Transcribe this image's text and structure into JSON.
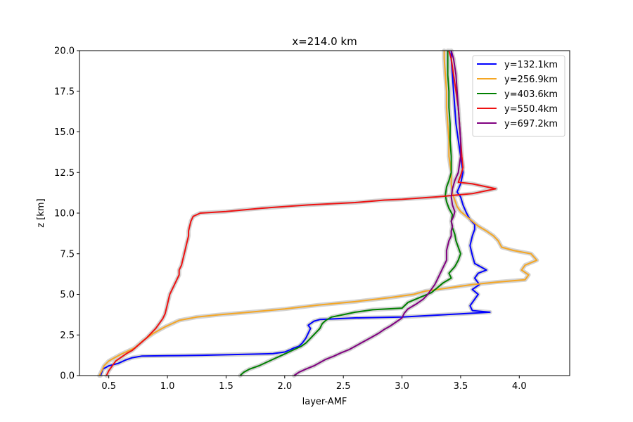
{
  "chart_data": {
    "type": "line",
    "title": "x=214.0 km",
    "xlabel": "layer-AMF",
    "ylabel": "z [km]",
    "xlim": [
      0.25,
      4.43
    ],
    "ylim": [
      0,
      20
    ],
    "xticks": [
      0.5,
      1.0,
      1.5,
      2.0,
      2.5,
      3.0,
      3.5,
      4.0
    ],
    "yticks": [
      0.0,
      2.5,
      5.0,
      7.5,
      10.0,
      12.5,
      15.0,
      17.5,
      20.0
    ],
    "xtick_labels": [
      "0.5",
      "1.0",
      "1.5",
      "2.0",
      "2.5",
      "3.0",
      "3.5",
      "4.0"
    ],
    "ytick_labels": [
      "0.0",
      "2.5",
      "5.0",
      "7.5",
      "10.0",
      "12.5",
      "15.0",
      "17.5",
      "20.0"
    ],
    "grid": false,
    "legend_position": "top-right",
    "series": [
      {
        "name": "y=132.1km",
        "color": "#0000ff",
        "points": [
          [
            0.43,
            0.0
          ],
          [
            0.45,
            0.4
          ],
          [
            0.5,
            0.6
          ],
          [
            0.58,
            0.75
          ],
          [
            0.64,
            0.95
          ],
          [
            0.7,
            1.1
          ],
          [
            0.78,
            1.2
          ],
          [
            1.0,
            1.22
          ],
          [
            1.3,
            1.25
          ],
          [
            1.6,
            1.3
          ],
          [
            1.9,
            1.35
          ],
          [
            2.0,
            1.45
          ],
          [
            2.05,
            1.6
          ],
          [
            2.08,
            1.7
          ],
          [
            2.12,
            1.8
          ],
          [
            2.15,
            2.0
          ],
          [
            2.18,
            2.3
          ],
          [
            2.2,
            2.6
          ],
          [
            2.22,
            2.9
          ],
          [
            2.2,
            3.1
          ],
          [
            2.25,
            3.35
          ],
          [
            2.3,
            3.45
          ],
          [
            2.6,
            3.55
          ],
          [
            3.0,
            3.6
          ],
          [
            3.5,
            3.8
          ],
          [
            3.75,
            3.9
          ],
          [
            3.6,
            4.0
          ],
          [
            3.58,
            4.3
          ],
          [
            3.62,
            4.7
          ],
          [
            3.65,
            5.0
          ],
          [
            3.6,
            5.3
          ],
          [
            3.66,
            5.6
          ],
          [
            3.62,
            6.0
          ],
          [
            3.65,
            6.3
          ],
          [
            3.72,
            6.5
          ],
          [
            3.62,
            6.9
          ],
          [
            3.6,
            7.4
          ],
          [
            3.58,
            8.0
          ],
          [
            3.6,
            8.6
          ],
          [
            3.62,
            9.0
          ],
          [
            3.62,
            9.3
          ],
          [
            3.58,
            9.6
          ],
          [
            3.55,
            10.0
          ],
          [
            3.52,
            10.5
          ],
          [
            3.5,
            11.0
          ],
          [
            3.47,
            11.3
          ],
          [
            3.5,
            11.8
          ],
          [
            3.52,
            12.5
          ],
          [
            3.5,
            13.5
          ],
          [
            3.48,
            14.5
          ],
          [
            3.46,
            15.5
          ],
          [
            3.45,
            16.5
          ],
          [
            3.44,
            17.5
          ],
          [
            3.43,
            18.5
          ],
          [
            3.42,
            19.5
          ],
          [
            3.42,
            20.0
          ]
        ]
      },
      {
        "name": "y=256.9km",
        "color": "#f5a623",
        "points": [
          [
            0.42,
            0.0
          ],
          [
            0.44,
            0.3
          ],
          [
            0.46,
            0.6
          ],
          [
            0.5,
            0.9
          ],
          [
            0.55,
            1.1
          ],
          [
            0.6,
            1.3
          ],
          [
            0.66,
            1.5
          ],
          [
            0.72,
            1.7
          ],
          [
            0.76,
            1.95
          ],
          [
            0.8,
            2.2
          ],
          [
            0.84,
            2.4
          ],
          [
            0.88,
            2.6
          ],
          [
            0.93,
            2.8
          ],
          [
            0.98,
            3.0
          ],
          [
            1.04,
            3.2
          ],
          [
            1.1,
            3.4
          ],
          [
            1.25,
            3.6
          ],
          [
            1.45,
            3.75
          ],
          [
            1.7,
            3.9
          ],
          [
            2.0,
            4.1
          ],
          [
            2.3,
            4.35
          ],
          [
            2.6,
            4.55
          ],
          [
            2.9,
            4.8
          ],
          [
            3.1,
            5.0
          ],
          [
            3.2,
            5.2
          ],
          [
            3.4,
            5.4
          ],
          [
            3.6,
            5.6
          ],
          [
            3.8,
            5.75
          ],
          [
            4.05,
            5.9
          ],
          [
            4.08,
            6.2
          ],
          [
            4.02,
            6.5
          ],
          [
            4.05,
            6.8
          ],
          [
            4.15,
            7.1
          ],
          [
            4.1,
            7.5
          ],
          [
            3.95,
            7.7
          ],
          [
            3.85,
            7.9
          ],
          [
            3.82,
            8.3
          ],
          [
            3.78,
            8.6
          ],
          [
            3.72,
            8.9
          ],
          [
            3.65,
            9.2
          ],
          [
            3.6,
            9.5
          ],
          [
            3.55,
            9.8
          ],
          [
            3.5,
            10.1
          ],
          [
            3.47,
            10.4
          ],
          [
            3.45,
            10.8
          ],
          [
            3.43,
            11.2
          ],
          [
            3.42,
            11.8
          ],
          [
            3.42,
            12.5
          ],
          [
            3.4,
            13.5
          ],
          [
            3.4,
            14.5
          ],
          [
            3.39,
            15.5
          ],
          [
            3.38,
            16.5
          ],
          [
            3.38,
            17.5
          ],
          [
            3.37,
            18.5
          ],
          [
            3.36,
            19.5
          ],
          [
            3.36,
            20.0
          ]
        ]
      },
      {
        "name": "y=403.6km",
        "color": "#008000",
        "points": [
          [
            1.62,
            0.0
          ],
          [
            1.65,
            0.2
          ],
          [
            1.7,
            0.4
          ],
          [
            1.78,
            0.6
          ],
          [
            1.84,
            0.8
          ],
          [
            1.9,
            1.0
          ],
          [
            1.96,
            1.2
          ],
          [
            2.02,
            1.4
          ],
          [
            2.08,
            1.6
          ],
          [
            2.14,
            1.8
          ],
          [
            2.18,
            2.0
          ],
          [
            2.22,
            2.3
          ],
          [
            2.26,
            2.6
          ],
          [
            2.3,
            2.9
          ],
          [
            2.32,
            3.2
          ],
          [
            2.35,
            3.4
          ],
          [
            2.4,
            3.6
          ],
          [
            2.5,
            3.75
          ],
          [
            2.6,
            3.9
          ],
          [
            2.75,
            4.05
          ],
          [
            3.0,
            4.15
          ],
          [
            3.05,
            4.5
          ],
          [
            3.15,
            4.8
          ],
          [
            3.25,
            5.1
          ],
          [
            3.3,
            5.4
          ],
          [
            3.35,
            5.7
          ],
          [
            3.42,
            6.0
          ],
          [
            3.4,
            6.3
          ],
          [
            3.45,
            6.7
          ],
          [
            3.48,
            7.1
          ],
          [
            3.5,
            7.5
          ],
          [
            3.48,
            7.9
          ],
          [
            3.46,
            8.3
          ],
          [
            3.45,
            8.7
          ],
          [
            3.43,
            9.1
          ],
          [
            3.42,
            9.5
          ],
          [
            3.43,
            9.9
          ],
          [
            3.4,
            10.3
          ],
          [
            3.38,
            10.7
          ],
          [
            3.37,
            11.1
          ],
          [
            3.38,
            11.6
          ],
          [
            3.4,
            12.0
          ],
          [
            3.42,
            12.5
          ],
          [
            3.42,
            13.5
          ],
          [
            3.41,
            14.5
          ],
          [
            3.41,
            15.5
          ],
          [
            3.4,
            16.5
          ],
          [
            3.4,
            17.5
          ],
          [
            3.39,
            18.5
          ],
          [
            3.39,
            19.5
          ],
          [
            3.39,
            20.0
          ]
        ]
      },
      {
        "name": "y=550.4km",
        "color": "#ee1111",
        "points": [
          [
            0.48,
            0.0
          ],
          [
            0.5,
            0.3
          ],
          [
            0.53,
            0.6
          ],
          [
            0.56,
            0.9
          ],
          [
            0.6,
            1.1
          ],
          [
            0.65,
            1.35
          ],
          [
            0.7,
            1.55
          ],
          [
            0.74,
            1.8
          ],
          [
            0.78,
            2.05
          ],
          [
            0.82,
            2.3
          ],
          [
            0.86,
            2.6
          ],
          [
            0.9,
            2.9
          ],
          [
            0.93,
            3.2
          ],
          [
            0.96,
            3.5
          ],
          [
            0.98,
            3.8
          ],
          [
            0.99,
            4.1
          ],
          [
            1.0,
            4.4
          ],
          [
            1.01,
            4.7
          ],
          [
            1.02,
            5.0
          ],
          [
            1.04,
            5.3
          ],
          [
            1.06,
            5.6
          ],
          [
            1.08,
            5.9
          ],
          [
            1.1,
            6.2
          ],
          [
            1.1,
            6.5
          ],
          [
            1.12,
            6.8
          ],
          [
            1.13,
            7.1
          ],
          [
            1.14,
            7.4
          ],
          [
            1.15,
            7.7
          ],
          [
            1.16,
            8.0
          ],
          [
            1.17,
            8.3
          ],
          [
            1.18,
            8.6
          ],
          [
            1.18,
            8.9
          ],
          [
            1.19,
            9.2
          ],
          [
            1.2,
            9.5
          ],
          [
            1.22,
            9.8
          ],
          [
            1.28,
            10.0
          ],
          [
            1.5,
            10.1
          ],
          [
            1.8,
            10.3
          ],
          [
            2.2,
            10.5
          ],
          [
            2.6,
            10.65
          ],
          [
            2.85,
            10.8
          ],
          [
            3.0,
            10.85
          ],
          [
            3.3,
            11.0
          ],
          [
            3.6,
            11.2
          ],
          [
            3.8,
            11.5
          ],
          [
            3.6,
            11.8
          ],
          [
            3.48,
            11.9
          ],
          [
            3.5,
            12.3
          ],
          [
            3.52,
            12.8
          ],
          [
            3.51,
            13.5
          ],
          [
            3.5,
            14.5
          ],
          [
            3.49,
            15.5
          ],
          [
            3.48,
            16.5
          ],
          [
            3.46,
            17.5
          ],
          [
            3.44,
            18.5
          ],
          [
            3.42,
            19.5
          ],
          [
            3.4,
            20.0
          ]
        ]
      },
      {
        "name": "y=697.2km",
        "color": "#800080",
        "points": [
          [
            2.08,
            0.0
          ],
          [
            2.12,
            0.2
          ],
          [
            2.18,
            0.4
          ],
          [
            2.25,
            0.6
          ],
          [
            2.3,
            0.8
          ],
          [
            2.35,
            1.0
          ],
          [
            2.42,
            1.2
          ],
          [
            2.48,
            1.4
          ],
          [
            2.55,
            1.6
          ],
          [
            2.6,
            1.8
          ],
          [
            2.65,
            2.0
          ],
          [
            2.7,
            2.2
          ],
          [
            2.75,
            2.4
          ],
          [
            2.8,
            2.6
          ],
          [
            2.85,
            2.85
          ],
          [
            2.9,
            3.05
          ],
          [
            2.95,
            3.3
          ],
          [
            3.0,
            3.55
          ],
          [
            3.02,
            3.85
          ],
          [
            3.05,
            4.1
          ],
          [
            3.12,
            4.4
          ],
          [
            3.18,
            4.7
          ],
          [
            3.22,
            5.0
          ],
          [
            3.25,
            5.3
          ],
          [
            3.28,
            5.6
          ],
          [
            3.3,
            5.9
          ],
          [
            3.32,
            6.2
          ],
          [
            3.34,
            6.5
          ],
          [
            3.36,
            6.8
          ],
          [
            3.38,
            7.1
          ],
          [
            3.38,
            7.4
          ],
          [
            3.38,
            7.7
          ],
          [
            3.39,
            8.0
          ],
          [
            3.4,
            8.3
          ],
          [
            3.42,
            8.6
          ],
          [
            3.42,
            8.9
          ],
          [
            3.43,
            9.2
          ],
          [
            3.42,
            9.5
          ],
          [
            3.44,
            9.8
          ],
          [
            3.45,
            10.1
          ],
          [
            3.43,
            10.5
          ],
          [
            3.42,
            11.0
          ],
          [
            3.43,
            11.5
          ],
          [
            3.45,
            12.0
          ],
          [
            3.48,
            12.5
          ],
          [
            3.5,
            13.5
          ],
          [
            3.5,
            14.5
          ],
          [
            3.49,
            15.5
          ],
          [
            3.48,
            16.5
          ],
          [
            3.47,
            17.5
          ],
          [
            3.46,
            18.5
          ],
          [
            3.44,
            19.5
          ],
          [
            3.42,
            20.0
          ]
        ]
      }
    ]
  }
}
